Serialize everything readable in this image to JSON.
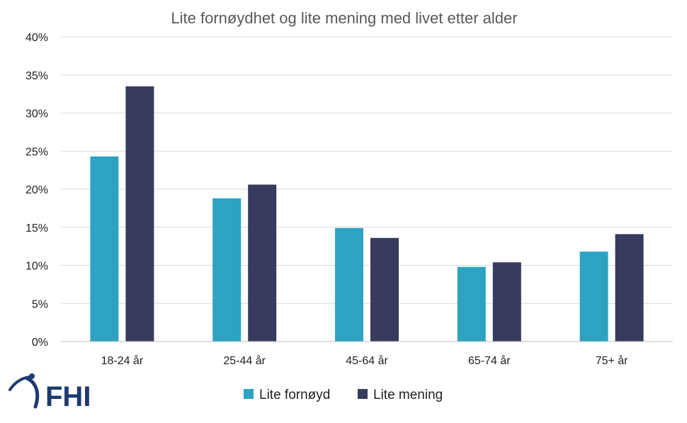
{
  "colors": {
    "series_1": "#2ea3c1",
    "series_2": "#383a5e",
    "logo": "#1f3a6e"
  },
  "logo": {
    "text": "FHI"
  },
  "chart_data": {
    "type": "bar",
    "title": "Lite fornøydhet og lite mening med livet etter alder",
    "categories": [
      "18-24 år",
      "25-44 år",
      "45-64 år",
      "65-74 år",
      "75+ år"
    ],
    "series": [
      {
        "name": "Lite fornøyd",
        "values": [
          24.3,
          18.8,
          14.9,
          9.8,
          11.8
        ]
      },
      {
        "name": "Lite mening",
        "values": [
          33.5,
          20.6,
          13.6,
          10.4,
          14.1
        ]
      }
    ],
    "ylim": [
      0,
      40
    ],
    "yticks": [
      0,
      5,
      10,
      15,
      20,
      25,
      30,
      35,
      40
    ],
    "ytick_format": "percent",
    "grid": true,
    "legend": "bottom-center"
  }
}
